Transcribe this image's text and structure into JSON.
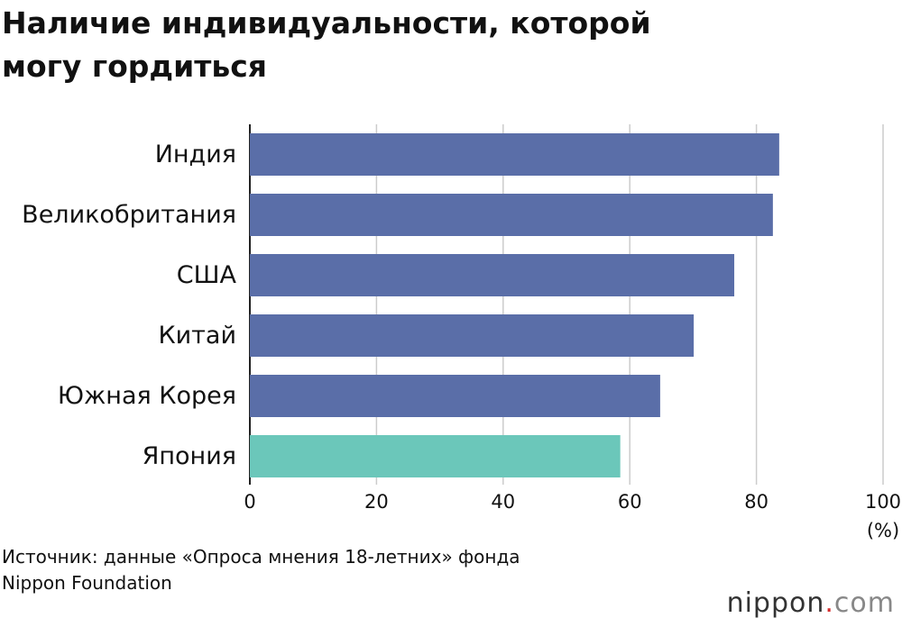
{
  "chart_data": {
    "type": "bar",
    "orientation": "horizontal",
    "title": "Наличие индивидуальности, которой могу гордиться",
    "categories": [
      "Индия",
      "Великобритания",
      "США",
      "Китай",
      "Южная Корея",
      "Япония"
    ],
    "values": [
      83.6,
      82.6,
      76.5,
      70.1,
      64.8,
      58.5
    ],
    "colors": [
      "#5a6ea8",
      "#5a6ea8",
      "#5a6ea8",
      "#5a6ea8",
      "#5a6ea8",
      "#6bc7ba"
    ],
    "xlim": [
      0,
      100
    ],
    "xticks": [
      0,
      20,
      40,
      60,
      80,
      100
    ],
    "x_label": "(%)",
    "grid": true,
    "source": "Источник: данные «Опроса мнения 18-летних» фонда Nippon Foundation",
    "brand": [
      "nippon",
      ".",
      "com"
    ]
  }
}
